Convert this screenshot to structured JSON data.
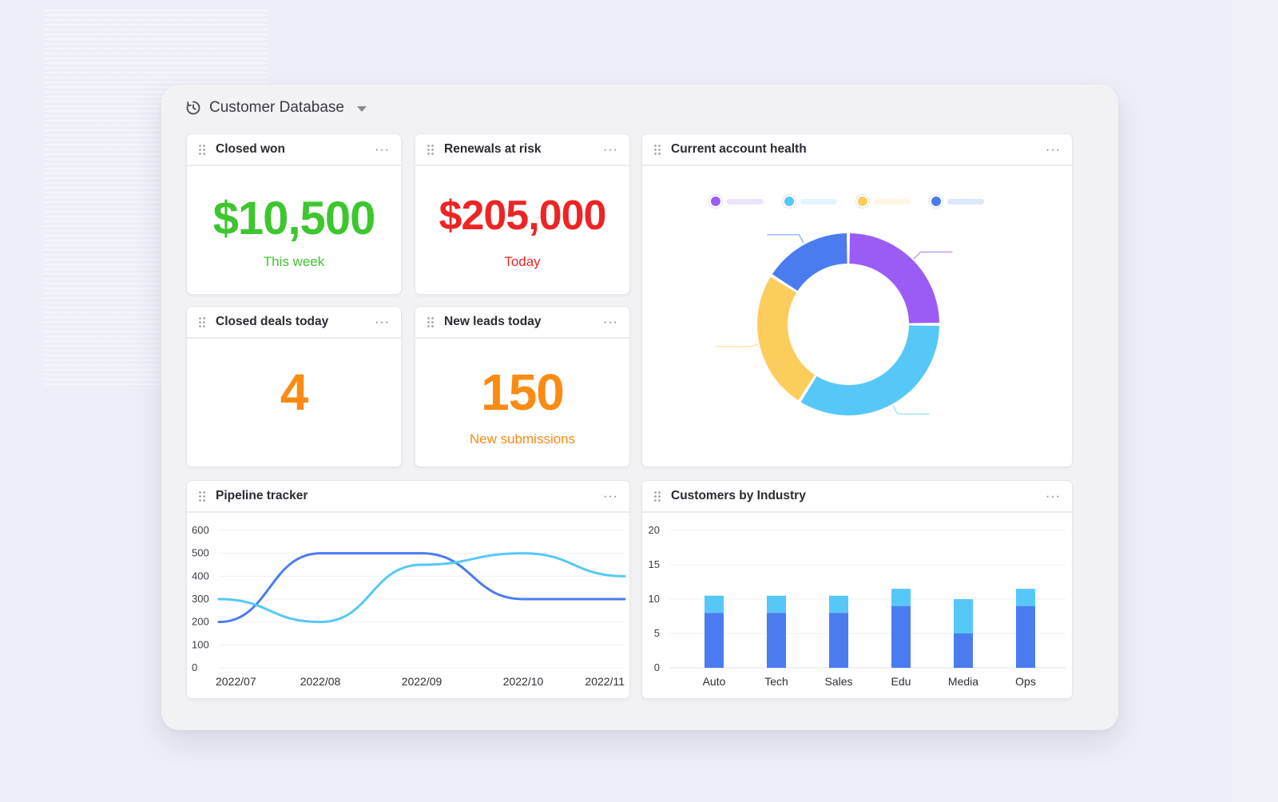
{
  "header": {
    "title": "Customer Database",
    "icon": "clock-icon"
  },
  "cards": {
    "closed_won": {
      "title": "Closed won",
      "value": "$10,500",
      "subtitle": "This week",
      "color": "#3ec62f"
    },
    "renewals": {
      "title": "Renewals at risk",
      "value": "$205,000",
      "subtitle": "Today",
      "color": "#ee2424"
    },
    "closed_deals": {
      "title": "Closed deals today",
      "value": "4",
      "color": "#fb8b12"
    },
    "new_leads": {
      "title": "New leads today",
      "value": "150",
      "subtitle": "New submissions",
      "color": "#fb8b12"
    },
    "account_health": {
      "title": "Current account health"
    },
    "pipeline": {
      "title": "Pipeline tracker"
    },
    "industry": {
      "title": "Customers by Industry"
    }
  },
  "more_icon": "more-horizontal-icon",
  "chart_data": [
    {
      "type": "pie",
      "variant": "donut",
      "slices": [
        {
          "value": 25,
          "color": "#9b5cf6"
        },
        {
          "value": 34,
          "color": "#56c8f8"
        },
        {
          "value": 25,
          "color": "#fbcd5c"
        },
        {
          "value": 16,
          "color": "#4a7cf0"
        }
      ],
      "legend_placement": "top"
    },
    {
      "type": "line",
      "x": [
        "2022/07",
        "2022/08",
        "2022/09",
        "2022/10",
        "2022/11"
      ],
      "ylim": [
        0,
        600
      ],
      "yticks": [
        600,
        500,
        400,
        300,
        200,
        100,
        0
      ],
      "series": [
        {
          "color": "#4a7cf0",
          "values": [
            200,
            500,
            500,
            300,
            300
          ]
        },
        {
          "color": "#56c8f8",
          "values": [
            300,
            200,
            450,
            500,
            400
          ]
        }
      ],
      "grid": true
    },
    {
      "type": "bar",
      "stacked": true,
      "categories": [
        "Auto",
        "Tech",
        "Sales",
        "Edu",
        "Media",
        "Ops"
      ],
      "ylim": [
        0,
        20
      ],
      "yticks": [
        20,
        15,
        10,
        5,
        0
      ],
      "series": [
        {
          "color": "#4a7cf0",
          "values": [
            8,
            8,
            8,
            9,
            5,
            9
          ]
        },
        {
          "color": "#56c8f8",
          "values": [
            2.5,
            2.5,
            2.5,
            2.5,
            5,
            2.5
          ]
        }
      ],
      "grid": true
    }
  ]
}
